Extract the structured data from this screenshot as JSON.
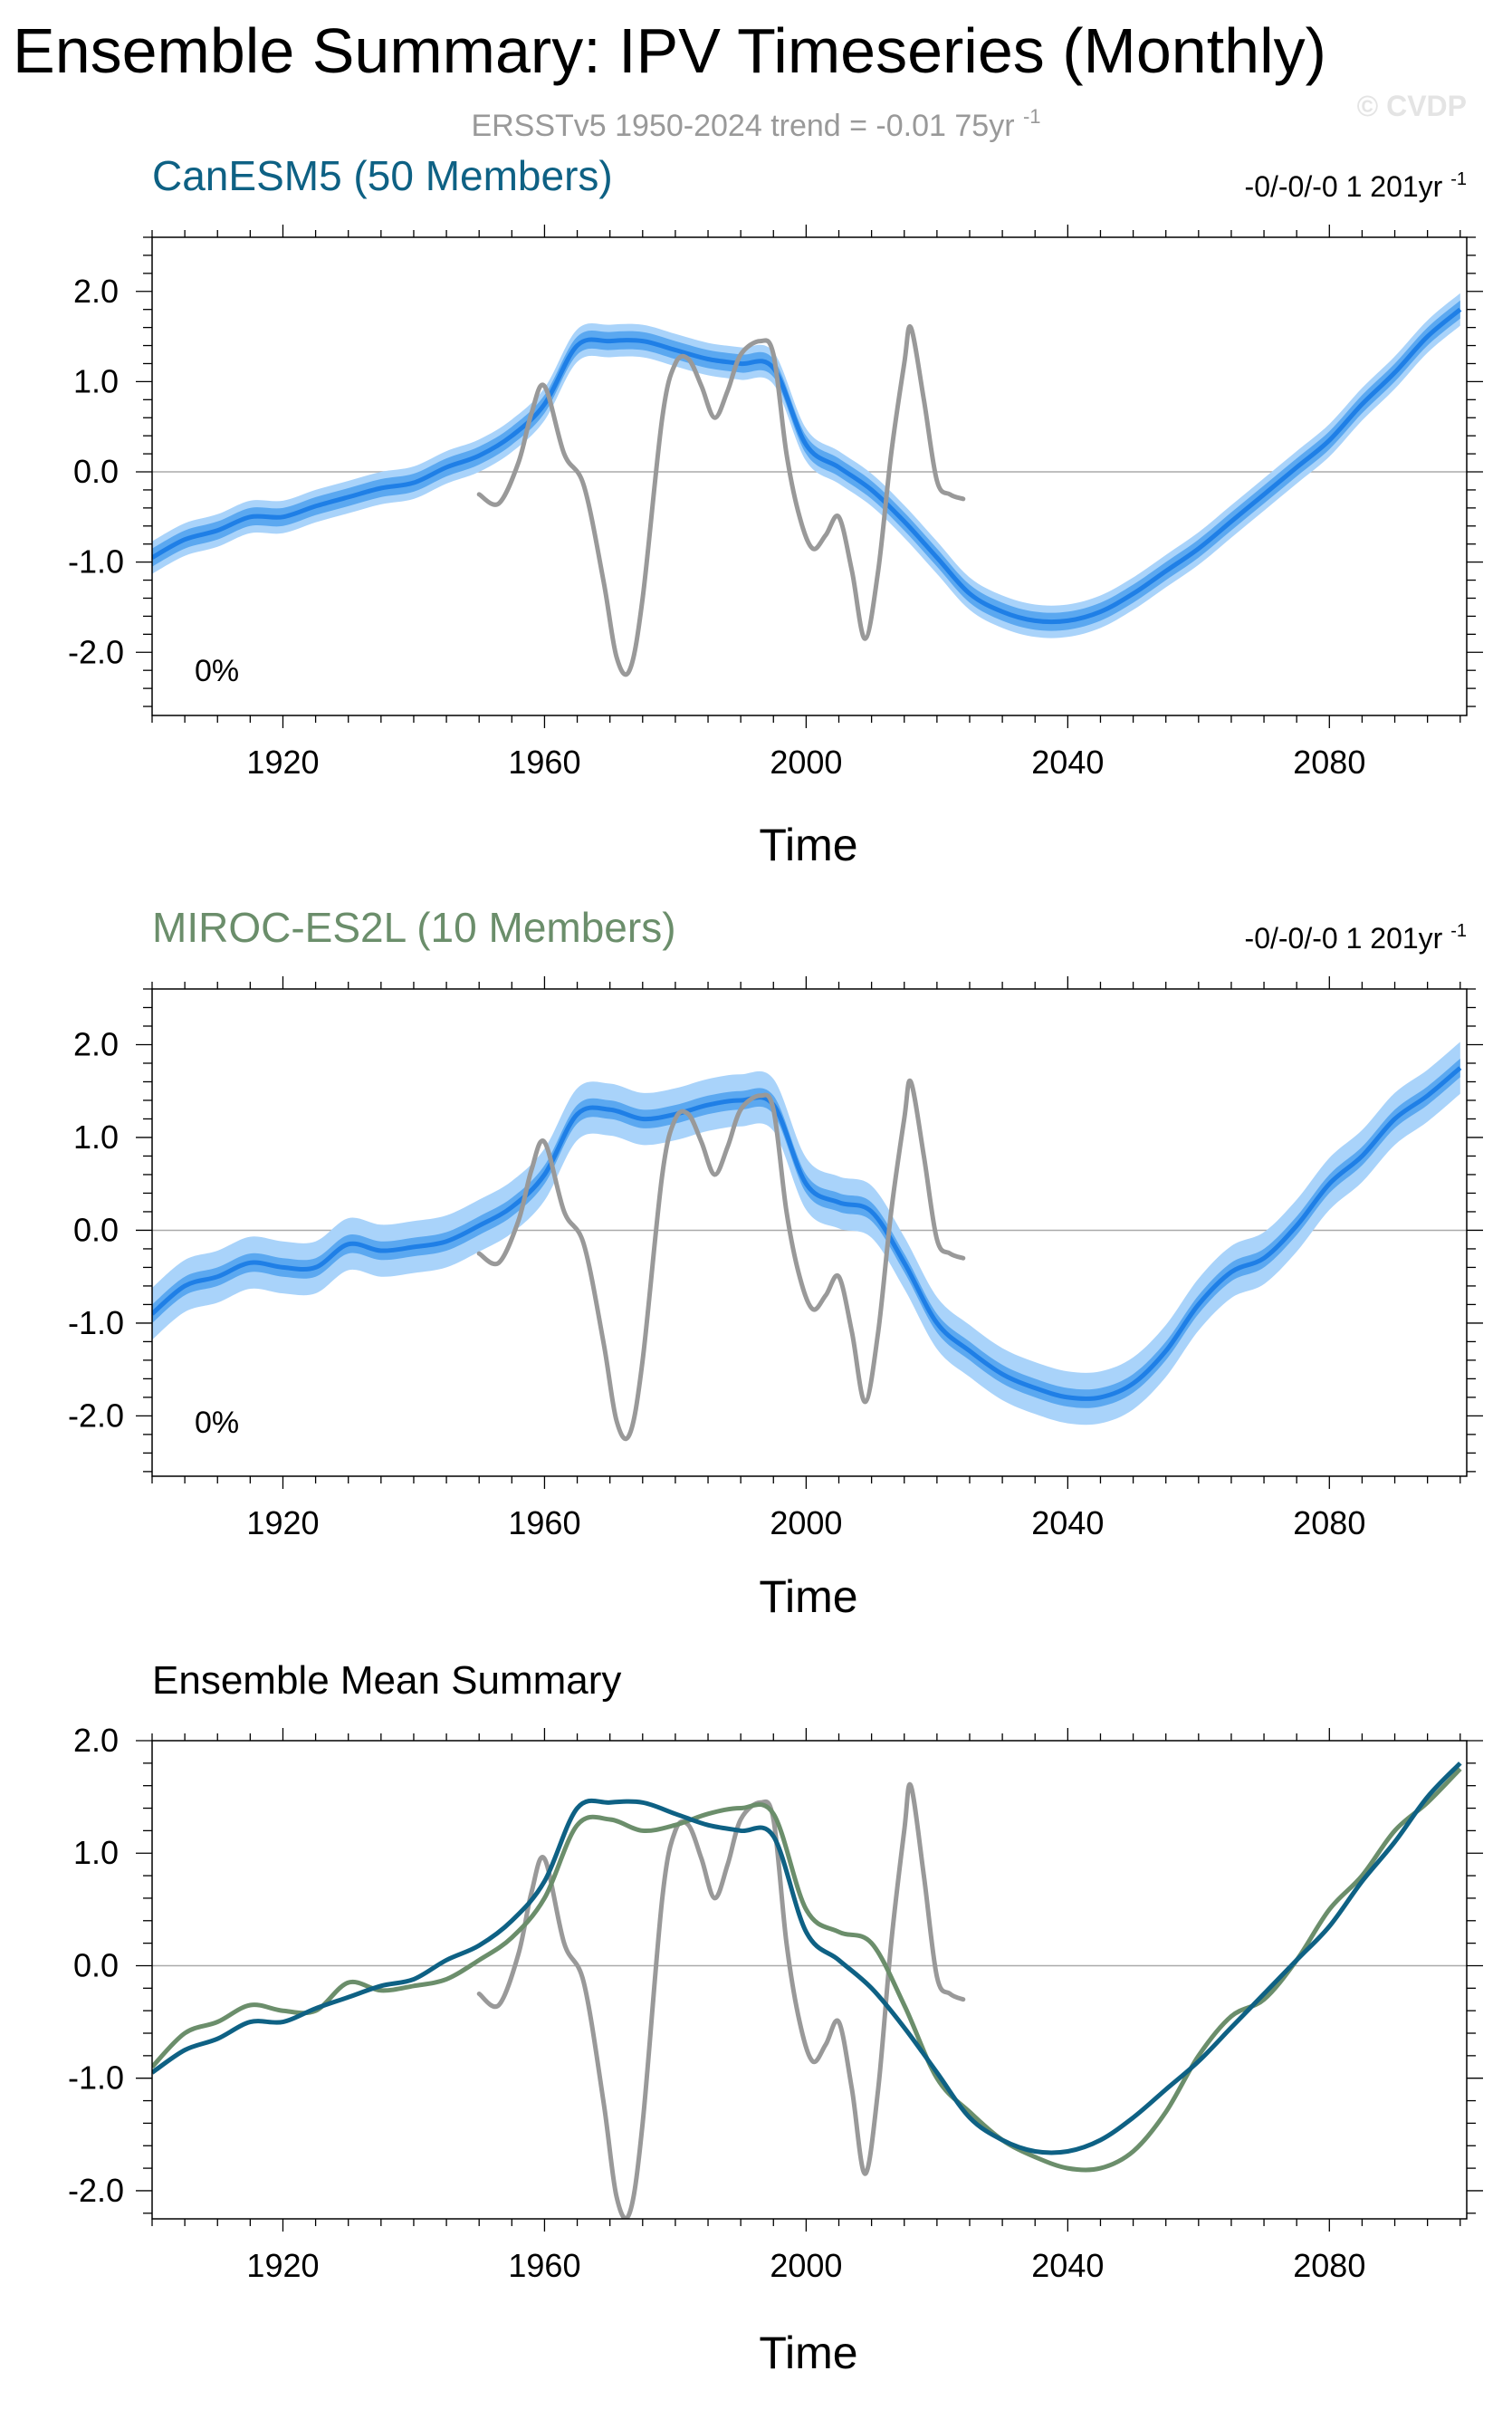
{
  "page": {
    "title": "Ensemble Summary: IPV Timeseries (Monthly)",
    "subtitle": "ERSSTv5 1950-2024 trend = -0.01 75yr",
    "subtitle_sup": "-1",
    "watermark": "© CVDP"
  },
  "colors": {
    "obs": "#999999",
    "canesm5": "#0e6184",
    "miroc": "#6b8e6b",
    "band_outer": "#a9d3fa",
    "band_inner": "#5ba8f0",
    "ens_mean": "#1f7fe6",
    "zero_line": "#aaaaaa"
  },
  "chart_data": [
    {
      "id": "canesm5",
      "type": "line",
      "title": "CanESM5 (50 Members)",
      "title_color": "#0e6184",
      "trend_label": "-0/-0/-0 1 201yr",
      "trend_sup": "-1",
      "percent_label": "0%",
      "xlabel": "Time",
      "ylabel": "",
      "xlim": [
        1900,
        2101
      ],
      "ylim": [
        -2.7,
        2.6
      ],
      "xticks": [
        1920,
        1960,
        2000,
        2040,
        2080
      ],
      "xtick_labels": [
        "1920",
        "1960",
        "2000",
        "2040",
        "2080"
      ],
      "yticks": [
        2.0,
        1.0,
        0.0,
        -1.0,
        -2.0
      ],
      "ytick_labels": [
        "2.0",
        "1.0",
        "0.0",
        "-1.0",
        "-2.0"
      ],
      "ensemble": {
        "name": "CanESM5 ensemble",
        "x": [
          1900,
          1905,
          1910,
          1915,
          1920,
          1925,
          1930,
          1935,
          1940,
          1945,
          1950,
          1955,
          1960,
          1965,
          1970,
          1975,
          1980,
          1985,
          1990,
          1995,
          2000,
          2005,
          2010,
          2015,
          2020,
          2025,
          2030,
          2035,
          2040,
          2045,
          2050,
          2055,
          2060,
          2065,
          2070,
          2075,
          2080,
          2085,
          2090,
          2095,
          2100
        ],
        "mean": [
          -0.95,
          -0.75,
          -0.65,
          -0.5,
          -0.5,
          -0.38,
          -0.28,
          -0.18,
          -0.12,
          0.05,
          0.18,
          0.4,
          0.75,
          1.4,
          1.45,
          1.45,
          1.35,
          1.25,
          1.2,
          1.15,
          0.3,
          0.05,
          -0.2,
          -0.55,
          -0.95,
          -1.35,
          -1.55,
          -1.65,
          -1.65,
          -1.55,
          -1.35,
          -1.1,
          -0.85,
          -0.55,
          -0.25,
          0.05,
          0.35,
          0.75,
          1.1,
          1.5,
          1.8
        ],
        "spread_inner": [
          0.1,
          0.1,
          0.1,
          0.1,
          0.1,
          0.1,
          0.1,
          0.1,
          0.1,
          0.1,
          0.1,
          0.1,
          0.1,
          0.1,
          0.1,
          0.1,
          0.1,
          0.1,
          0.1,
          0.1,
          0.1,
          0.1,
          0.1,
          0.1,
          0.1,
          0.1,
          0.1,
          0.1,
          0.1,
          0.1,
          0.1,
          0.1,
          0.1,
          0.1,
          0.1,
          0.1,
          0.1,
          0.1,
          0.1,
          0.1,
          0.1
        ],
        "spread_outer": [
          0.18,
          0.18,
          0.18,
          0.18,
          0.18,
          0.18,
          0.18,
          0.18,
          0.18,
          0.18,
          0.18,
          0.18,
          0.18,
          0.18,
          0.18,
          0.18,
          0.18,
          0.18,
          0.18,
          0.18,
          0.18,
          0.18,
          0.18,
          0.18,
          0.18,
          0.18,
          0.18,
          0.18,
          0.18,
          0.18,
          0.18,
          0.18,
          0.18,
          0.18,
          0.18,
          0.18,
          0.18,
          0.18,
          0.18,
          0.18,
          0.18
        ]
      },
      "observed": {
        "name": "ERSSTv5",
        "x": [
          1950,
          1953,
          1956,
          1958,
          1960,
          1963,
          1966,
          1969,
          1971,
          1973,
          1975,
          1978,
          1980,
          1982,
          1984,
          1986,
          1988,
          1990,
          1993,
          1995,
          1997,
          1999,
          2001,
          2003,
          2005,
          2007,
          2009,
          2011,
          2013,
          2015,
          2016,
          2018,
          2020,
          2022,
          2024
        ],
        "y": [
          -0.25,
          -0.35,
          0.1,
          0.65,
          0.95,
          0.2,
          -0.15,
          -1.2,
          -2.05,
          -2.2,
          -1.4,
          0.6,
          1.2,
          1.25,
          0.95,
          0.6,
          0.9,
          1.3,
          1.45,
          1.3,
          0.2,
          -0.5,
          -0.85,
          -0.7,
          -0.5,
          -1.1,
          -1.85,
          -1.1,
          0.2,
          1.2,
          1.6,
          0.8,
          -0.1,
          -0.25,
          -0.3
        ]
      }
    },
    {
      "id": "miroc",
      "type": "line",
      "title": "MIROC-ES2L (10 Members)",
      "title_color": "#6b8e6b",
      "trend_label": "-0/-0/-0 1 201yr",
      "trend_sup": "-1",
      "percent_label": "0%",
      "xlabel": "Time",
      "ylabel": "",
      "xlim": [
        1900,
        2101
      ],
      "ylim": [
        -2.65,
        2.6
      ],
      "xticks": [
        1920,
        1960,
        2000,
        2040,
        2080
      ],
      "xtick_labels": [
        "1920",
        "1960",
        "2000",
        "2040",
        "2080"
      ],
      "yticks": [
        2.0,
        1.0,
        0.0,
        -1.0,
        -2.0
      ],
      "ytick_labels": [
        "2.0",
        "1.0",
        "0.0",
        "-1.0",
        "-2.0"
      ],
      "ensemble": {
        "name": "MIROC-ES2L ensemble",
        "x": [
          1900,
          1905,
          1910,
          1915,
          1920,
          1925,
          1930,
          1935,
          1940,
          1945,
          1950,
          1955,
          1960,
          1965,
          1970,
          1975,
          1980,
          1985,
          1990,
          1995,
          2000,
          2005,
          2010,
          2015,
          2020,
          2025,
          2030,
          2035,
          2040,
          2045,
          2050,
          2055,
          2060,
          2065,
          2070,
          2075,
          2080,
          2085,
          2090,
          2095,
          2100
        ],
        "mean": [
          -0.9,
          -0.6,
          -0.5,
          -0.35,
          -0.4,
          -0.4,
          -0.15,
          -0.22,
          -0.18,
          -0.12,
          0.05,
          0.25,
          0.6,
          1.25,
          1.3,
          1.2,
          1.25,
          1.35,
          1.4,
          1.35,
          0.5,
          0.3,
          0.2,
          -0.35,
          -1.0,
          -1.3,
          -1.55,
          -1.7,
          -1.8,
          -1.8,
          -1.65,
          -1.3,
          -0.8,
          -0.45,
          -0.3,
          0.05,
          0.5,
          0.8,
          1.2,
          1.45,
          1.75
        ],
        "spread_inner": [
          0.1,
          0.1,
          0.1,
          0.1,
          0.1,
          0.1,
          0.1,
          0.1,
          0.1,
          0.1,
          0.1,
          0.1,
          0.1,
          0.1,
          0.1,
          0.1,
          0.1,
          0.1,
          0.1,
          0.1,
          0.1,
          0.1,
          0.1,
          0.1,
          0.1,
          0.1,
          0.1,
          0.1,
          0.1,
          0.1,
          0.1,
          0.1,
          0.1,
          0.1,
          0.1,
          0.1,
          0.1,
          0.1,
          0.1,
          0.1,
          0.1
        ],
        "spread_outer": [
          0.28,
          0.28,
          0.28,
          0.28,
          0.28,
          0.28,
          0.28,
          0.28,
          0.28,
          0.28,
          0.28,
          0.28,
          0.28,
          0.28,
          0.28,
          0.28,
          0.28,
          0.28,
          0.28,
          0.28,
          0.28,
          0.28,
          0.28,
          0.28,
          0.28,
          0.28,
          0.28,
          0.28,
          0.28,
          0.28,
          0.28,
          0.28,
          0.28,
          0.28,
          0.28,
          0.28,
          0.28,
          0.28,
          0.28,
          0.28,
          0.28
        ]
      },
      "observed": {
        "name": "ERSSTv5",
        "x": [
          1950,
          1953,
          1956,
          1958,
          1960,
          1963,
          1966,
          1969,
          1971,
          1973,
          1975,
          1978,
          1980,
          1982,
          1984,
          1986,
          1988,
          1990,
          1993,
          1995,
          1997,
          1999,
          2001,
          2003,
          2005,
          2007,
          2009,
          2011,
          2013,
          2015,
          2016,
          2018,
          2020,
          2022,
          2024
        ],
        "y": [
          -0.25,
          -0.35,
          0.1,
          0.65,
          0.95,
          0.2,
          -0.15,
          -1.2,
          -2.05,
          -2.2,
          -1.4,
          0.6,
          1.2,
          1.25,
          0.95,
          0.6,
          0.9,
          1.3,
          1.45,
          1.3,
          0.2,
          -0.5,
          -0.85,
          -0.7,
          -0.5,
          -1.1,
          -1.85,
          -1.1,
          0.2,
          1.2,
          1.6,
          0.8,
          -0.1,
          -0.25,
          -0.3
        ]
      }
    },
    {
      "id": "mean",
      "type": "line",
      "title": "Ensemble Mean Summary",
      "xlabel": "Time",
      "ylabel": "",
      "xlim": [
        1900,
        2101
      ],
      "ylim": [
        -2.25,
        2.0
      ],
      "xticks": [
        1920,
        1960,
        2000,
        2040,
        2080
      ],
      "xtick_labels": [
        "1920",
        "1960",
        "2000",
        "2040",
        "2080"
      ],
      "yticks": [
        2.0,
        1.0,
        0.0,
        -1.0,
        -2.0
      ],
      "ytick_labels": [
        "2.0",
        "1.0",
        "0.0",
        "-1.0",
        "-2.0"
      ],
      "series": [
        {
          "name": "CanESM5",
          "color": "#0e6184",
          "x": [
            1900,
            1905,
            1910,
            1915,
            1920,
            1925,
            1930,
            1935,
            1940,
            1945,
            1950,
            1955,
            1960,
            1965,
            1970,
            1975,
            1980,
            1985,
            1990,
            1995,
            2000,
            2005,
            2010,
            2015,
            2020,
            2025,
            2030,
            2035,
            2040,
            2045,
            2050,
            2055,
            2060,
            2065,
            2070,
            2075,
            2080,
            2085,
            2090,
            2095,
            2100
          ],
          "y": [
            -0.95,
            -0.75,
            -0.65,
            -0.5,
            -0.5,
            -0.38,
            -0.28,
            -0.18,
            -0.12,
            0.05,
            0.18,
            0.4,
            0.75,
            1.4,
            1.45,
            1.45,
            1.35,
            1.25,
            1.2,
            1.15,
            0.3,
            0.05,
            -0.2,
            -0.55,
            -0.95,
            -1.35,
            -1.55,
            -1.65,
            -1.65,
            -1.55,
            -1.35,
            -1.1,
            -0.85,
            -0.55,
            -0.25,
            0.05,
            0.35,
            0.75,
            1.1,
            1.5,
            1.8
          ]
        },
        {
          "name": "MIROC-ES2L",
          "color": "#6b8e6b",
          "x": [
            1900,
            1905,
            1910,
            1915,
            1920,
            1925,
            1930,
            1935,
            1940,
            1945,
            1950,
            1955,
            1960,
            1965,
            1970,
            1975,
            1980,
            1985,
            1990,
            1995,
            2000,
            2005,
            2010,
            2015,
            2020,
            2025,
            2030,
            2035,
            2040,
            2045,
            2050,
            2055,
            2060,
            2065,
            2070,
            2075,
            2080,
            2085,
            2090,
            2095,
            2100
          ],
          "y": [
            -0.9,
            -0.6,
            -0.5,
            -0.35,
            -0.4,
            -0.4,
            -0.15,
            -0.22,
            -0.18,
            -0.12,
            0.05,
            0.25,
            0.6,
            1.25,
            1.3,
            1.2,
            1.25,
            1.35,
            1.4,
            1.35,
            0.5,
            0.3,
            0.2,
            -0.35,
            -1.0,
            -1.3,
            -1.55,
            -1.7,
            -1.8,
            -1.8,
            -1.65,
            -1.3,
            -0.8,
            -0.45,
            -0.3,
            0.05,
            0.5,
            0.8,
            1.2,
            1.45,
            1.75
          ]
        }
      ],
      "observed": {
        "name": "ERSSTv5",
        "x": [
          1950,
          1953,
          1956,
          1958,
          1960,
          1963,
          1966,
          1969,
          1971,
          1973,
          1975,
          1978,
          1980,
          1982,
          1984,
          1986,
          1988,
          1990,
          1993,
          1995,
          1997,
          1999,
          2001,
          2003,
          2005,
          2007,
          2009,
          2011,
          2013,
          2015,
          2016,
          2018,
          2020,
          2022,
          2024
        ],
        "y": [
          -0.25,
          -0.35,
          0.1,
          0.65,
          0.95,
          0.2,
          -0.15,
          -1.2,
          -2.05,
          -2.2,
          -1.4,
          0.6,
          1.2,
          1.25,
          0.95,
          0.6,
          0.9,
          1.3,
          1.45,
          1.3,
          0.2,
          -0.5,
          -0.85,
          -0.7,
          -0.5,
          -1.1,
          -1.85,
          -1.1,
          0.2,
          1.2,
          1.6,
          0.8,
          -0.1,
          -0.25,
          -0.3
        ]
      }
    }
  ]
}
